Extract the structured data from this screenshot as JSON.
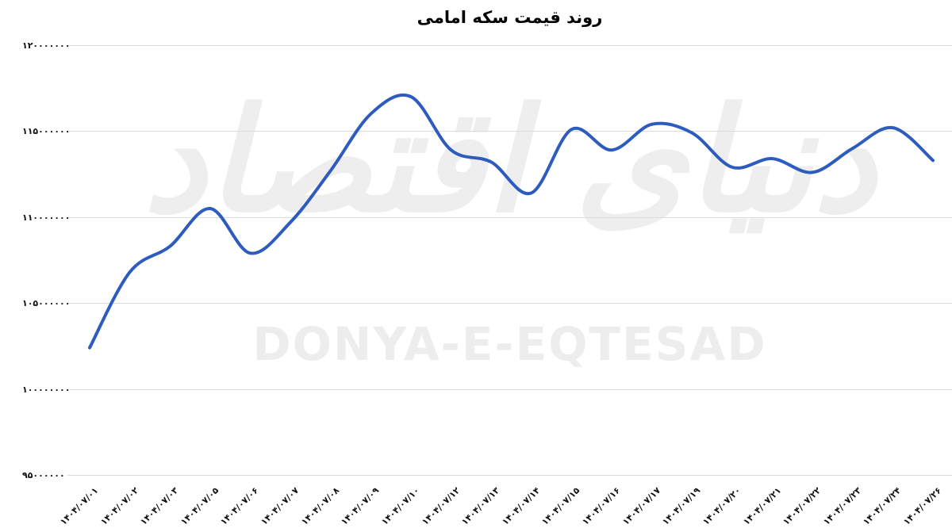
{
  "title": "روند قیمت سکه امامی",
  "watermark": {
    "persian": "دنیای اقتصاد",
    "latin": "DONYA-E-EQTESAD"
  },
  "colors": {
    "line": "#2d5cbe",
    "grid": "#dcdcdc",
    "tick_text": "#111111",
    "watermark": "#ededed"
  },
  "chart_data": {
    "type": "line",
    "title": "روند قیمت سکه امامی",
    "xlabel": "",
    "ylabel": "",
    "grid": true,
    "legend": false,
    "smooth": true,
    "line_color": "#2d5cbe",
    "ylim": [
      95000000,
      120000000
    ],
    "y_ticks": [
      {
        "label": "۹۵۰۰۰۰۰۰",
        "value": 95000000
      },
      {
        "label": "۱۰۰۰۰۰۰۰۰",
        "value": 100000000
      },
      {
        "label": "۱۰۵۰۰۰۰۰۰",
        "value": 105000000
      },
      {
        "label": "۱۱۰۰۰۰۰۰۰",
        "value": 110000000
      },
      {
        "label": "۱۱۵۰۰۰۰۰۰",
        "value": 115000000
      },
      {
        "label": "۱۲۰۰۰۰۰۰۰",
        "value": 120000000
      }
    ],
    "categories": [
      "۱۴۰۴/۰۷/۰۱",
      "۱۴۰۴/۰۷/۰۲",
      "۱۴۰۴/۰۷/۰۳",
      "۱۴۰۴/۰۷/۰۵",
      "۱۴۰۴/۰۷/۰۶",
      "۱۴۰۴/۰۷/۰۷",
      "۱۴۰۴/۰۷/۰۸",
      "۱۴۰۴/۰۷/۰۹",
      "۱۴۰۴/۰۷/۱۰",
      "۱۴۰۴/۰۷/۱۲",
      "۱۴۰۴/۰۷/۱۳",
      "۱۴۰۴/۰۷/۱۴",
      "۱۴۰۴/۰۷/۱۵",
      "۱۴۰۴/۰۷/۱۶",
      "۱۴۰۴/۰۷/۱۷",
      "۱۴۰۴/۰۷/۱۹",
      "۱۴۰۴/۰۷/۲۰",
      "۱۴۰۴/۰۷/۲۱",
      "۱۴۰۴/۰۷/۲۲",
      "۱۴۰۴/۰۷/۲۳",
      "۱۴۰۴/۰۷/۲۴",
      "۱۴۰۴/۰۷/۲۶"
    ],
    "values": [
      102400000,
      106800000,
      108300000,
      110500000,
      107900000,
      109700000,
      112700000,
      116000000,
      117000000,
      113900000,
      113200000,
      111400000,
      115100000,
      113900000,
      115400000,
      114900000,
      112900000,
      113400000,
      112600000,
      114000000,
      115200000,
      113300000
    ]
  }
}
